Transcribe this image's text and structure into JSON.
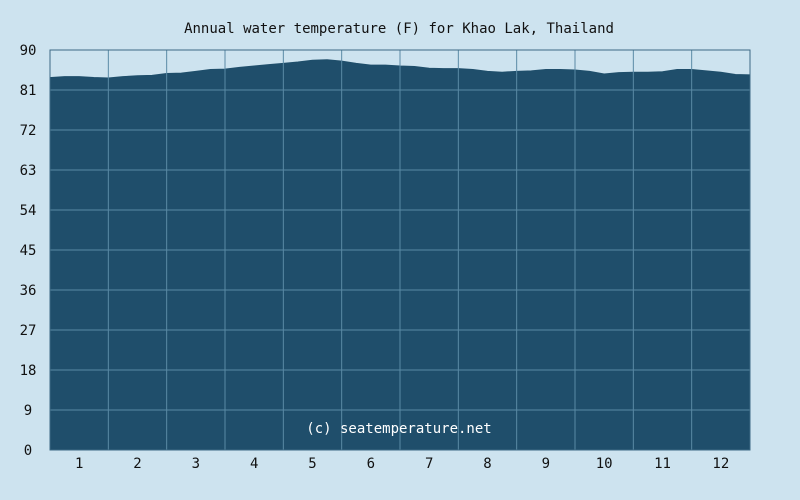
{
  "chart_data": {
    "type": "area",
    "title": "Annual water temperature (F) for Khao Lak, Thailand",
    "xlabel": "",
    "ylabel": "",
    "ylim": [
      0,
      90
    ],
    "y_ticks": [
      0,
      9,
      18,
      27,
      36,
      45,
      54,
      63,
      72,
      81,
      90
    ],
    "x_tick_labels": [
      "1",
      "2",
      "3",
      "4",
      "5",
      "6",
      "7",
      "8",
      "9",
      "10",
      "11",
      "12"
    ],
    "grid": true,
    "watermark": "(c) seatemperature.net",
    "series": [
      {
        "x": [
          0,
          0.25,
          0.5,
          0.75,
          1.0,
          1.25,
          1.5,
          1.75,
          2.0,
          2.25,
          2.5,
          2.75,
          3.0,
          3.25,
          3.5,
          3.75,
          4.0,
          4.25,
          4.5,
          4.75,
          5.0,
          5.25,
          5.5,
          5.75,
          6.0,
          6.25,
          6.5,
          6.75,
          7.0,
          7.25,
          7.5,
          7.75,
          8.0,
          8.25,
          8.5,
          8.75,
          9.0,
          9.25,
          9.5,
          9.75,
          10.0,
          10.25,
          10.5,
          10.75,
          11.0,
          11.25,
          11.5,
          11.75,
          12.0
        ],
        "values": [
          83.8,
          84.0,
          84.0,
          83.8,
          83.7,
          84.0,
          84.2,
          84.3,
          84.7,
          84.8,
          85.2,
          85.6,
          85.7,
          86.1,
          86.4,
          86.7,
          87.0,
          87.3,
          87.7,
          87.8,
          87.5,
          87.0,
          86.6,
          86.6,
          86.4,
          86.3,
          85.9,
          85.8,
          85.8,
          85.6,
          85.2,
          85.0,
          85.2,
          85.3,
          85.6,
          85.6,
          85.5,
          85.2,
          84.6,
          84.9,
          85.0,
          85.0,
          85.1,
          85.6,
          85.6,
          85.3,
          85.0,
          84.5,
          84.4
        ]
      }
    ]
  },
  "colors": {
    "background": "#cde3ef",
    "plot_fill": "#1f4e6b",
    "plot_area": "#cde3ef",
    "grid": "#5a8aa5",
    "frame": "#3d6a85",
    "text": "#111111",
    "watermark": "#ffffff"
  }
}
